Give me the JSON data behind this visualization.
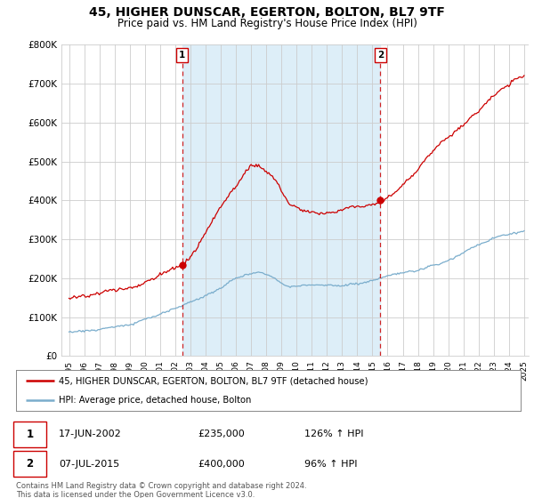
{
  "title": "45, HIGHER DUNSCAR, EGERTON, BOLTON, BL7 9TF",
  "subtitle": "Price paid vs. HM Land Registry's House Price Index (HPI)",
  "legend_line1": "45, HIGHER DUNSCAR, EGERTON, BOLTON, BL7 9TF (detached house)",
  "legend_line2": "HPI: Average price, detached house, Bolton",
  "footnote": "Contains HM Land Registry data © Crown copyright and database right 2024.\nThis data is licensed under the Open Government Licence v3.0.",
  "sale1_date": "17-JUN-2002",
  "sale1_price": "£235,000",
  "sale1_hpi": "126% ↑ HPI",
  "sale2_date": "07-JUL-2015",
  "sale2_price": "£400,000",
  "sale2_hpi": "96% ↑ HPI",
  "red_color": "#cc0000",
  "blue_color": "#7aadcc",
  "shade_color": "#ddeef8",
  "background_color": "#ffffff",
  "grid_color": "#cccccc",
  "ylim": [
    0,
    800000
  ],
  "yticks": [
    0,
    100000,
    200000,
    300000,
    400000,
    500000,
    600000,
    700000,
    800000
  ],
  "ytick_labels": [
    "£0",
    "£100K",
    "£200K",
    "£300K",
    "£400K",
    "£500K",
    "£600K",
    "£700K",
    "£800K"
  ],
  "sale1_year": 2002.46,
  "sale1_value": 235000,
  "sale2_year": 2015.52,
  "sale2_value": 400000,
  "vline1_year": 2002.46,
  "vline2_year": 2015.52,
  "xmin": 1995,
  "xmax": 2025
}
